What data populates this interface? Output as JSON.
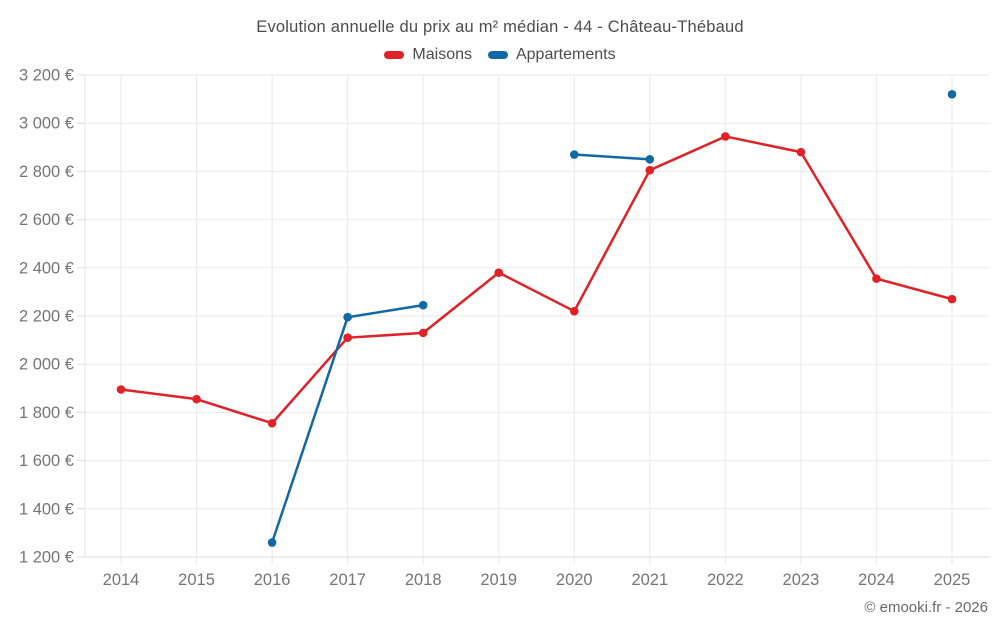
{
  "page": {
    "footer_credit": "© emooki.fr - 2026"
  },
  "chart_data": {
    "type": "line",
    "title": "Evolution annuelle du prix au m² médian - 44 - Château-Thébaud",
    "categories": [
      "2014",
      "2015",
      "2016",
      "2017",
      "2018",
      "2019",
      "2020",
      "2021",
      "2022",
      "2023",
      "2024",
      "2025"
    ],
    "series": [
      {
        "name": "Maisons",
        "color": "#e02127",
        "values": [
          1895,
          1855,
          1755,
          2110,
          2130,
          2380,
          2220,
          2805,
          2945,
          2880,
          2355,
          2270
        ]
      },
      {
        "name": "Appartements",
        "color": "#1268a5",
        "values": [
          null,
          null,
          1260,
          2195,
          2245,
          null,
          2870,
          2850,
          null,
          null,
          null,
          3120
        ]
      }
    ],
    "xlabel": "",
    "ylabel": "",
    "ylim": [
      1200,
      3200
    ],
    "y_tick_step": 200,
    "y_tick_suffix": " €",
    "grid": true,
    "legend_position": "top"
  }
}
